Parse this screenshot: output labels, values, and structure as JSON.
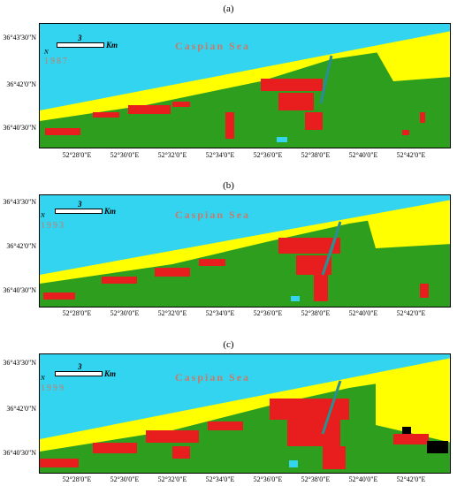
{
  "panels": [
    {
      "label": "(a)",
      "year": "1987"
    },
    {
      "label": "(b)",
      "year": "1993"
    },
    {
      "label": "(c)",
      "year": "1999"
    }
  ],
  "sea_label": "Caspian Sea",
  "scale": {
    "value": "3",
    "unit": "Km"
  },
  "north": "N",
  "lat_labels": [
    "36°43'30\"N",
    "36°42'0\"N",
    "36°40'30\"N"
  ],
  "lon_labels": [
    "52°28'0\"E",
    "52°30'0\"E",
    "52°32'0\"E",
    "52°34'0\"E",
    "52°36'0\"E",
    "52°38'0\"E",
    "52°40'0\"E",
    "52°42'0\"E"
  ],
  "colors": {
    "sea": "#33d4f0",
    "beach": "#ffff00",
    "vegetation": "#2e9e1e",
    "urban": "#e81e1e",
    "water": "#33d4f0",
    "bare": "#000000"
  }
}
